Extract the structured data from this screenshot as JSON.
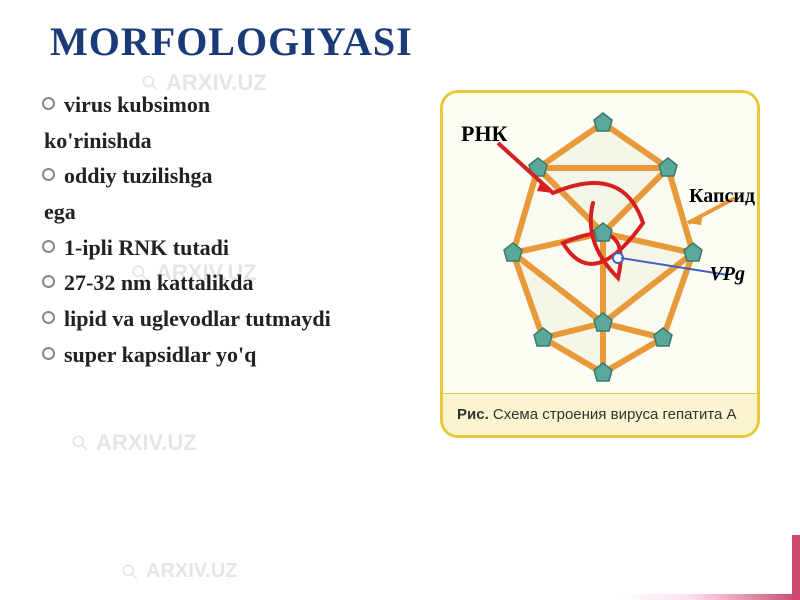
{
  "title": "MORFOLOGIYASI",
  "title_fontsize": 40,
  "title_color": "#1a3a7a",
  "bullets": [
    {
      "main": "virus kubsimon",
      "cont": "ko'rinishda"
    },
    {
      "main": "oddiy tuzilishga",
      "cont": "ega"
    },
    {
      "main": "1-ipli RNK tutadi"
    },
    {
      "main": "27-32 nm kattalikda"
    },
    {
      "main": "lipid va uglevodlar tutmaydi"
    },
    {
      "main": "super kapsidlar yo'q"
    }
  ],
  "bullet_fontsize": 22,
  "bullet_color": "#222222",
  "figure": {
    "border_color": "#e8c93a",
    "bg_color": "#fffef8",
    "caption_bg": "#faf4d0",
    "caption_label": "Рис.",
    "caption_text": "Схема строения вируса гепатита А",
    "caption_fontsize": 15,
    "labels": {
      "rnk": "РНК",
      "kapsid": "Капсид",
      "vpg": "VPg"
    },
    "diagram": {
      "type": "icosahedron-schematic",
      "edge_color": "#e89a3a",
      "vertex_color": "#5aa89a",
      "rna_color": "#d62020",
      "vpg_dot_color": "#4060c0",
      "arrow_rnk_color": "#d62020",
      "arrow_kapsid_color": "#e89a3a",
      "line_vpg_color": "#4060c0",
      "bg_faces": "#f5f5e8",
      "edge_width": 6,
      "vertex_size": 18
    }
  },
  "watermark_text": "ARXIV.UZ",
  "watermark_color": "#c0c0c0",
  "accent_bar_color": "#c94a6a"
}
